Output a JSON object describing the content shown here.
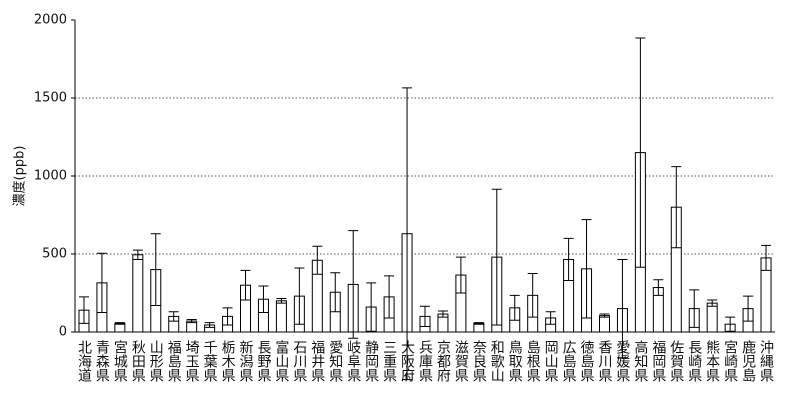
{
  "chart_data": {
    "type": "bar",
    "y_label": "濃度(ppb)",
    "categories": [
      "北海道",
      "青森県",
      "宮城県",
      "秋田県",
      "山形県",
      "福島県",
      "埼玉県",
      "千葉県",
      "栃木県",
      "新潟県",
      "長野県",
      "富山県",
      "石川県",
      "福井県",
      "愛知県",
      "岐阜県",
      "静岡県",
      "三重県",
      "大阪府",
      "兵庫県",
      "京都府",
      "滋賀県",
      "奈良県",
      "和歌山",
      "鳥取県",
      "島根県",
      "岡山県",
      "広島県",
      "徳島県",
      "香川県",
      "愛媛県",
      "高知県",
      "福岡県",
      "佐賀県",
      "長崎県",
      "熊本県",
      "宮崎県",
      "鹿児島",
      "沖縄県"
    ],
    "values": [
      140,
      315,
      55,
      495,
      400,
      100,
      70,
      45,
      100,
      300,
      210,
      200,
      230,
      460,
      255,
      305,
      160,
      225,
      630,
      100,
      115,
      365,
      55,
      480,
      155,
      235,
      90,
      465,
      405,
      105,
      150,
      1150,
      285,
      800,
      150,
      185,
      50,
      150,
      475
    ],
    "errors": [
      85,
      190,
      5,
      30,
      230,
      30,
      10,
      15,
      55,
      95,
      85,
      15,
      180,
      90,
      125,
      345,
      155,
      135,
      935,
      65,
      20,
      115,
      5,
      435,
      80,
      140,
      40,
      135,
      315,
      10,
      315,
      735,
      50,
      260,
      120,
      20,
      45,
      80,
      80
    ],
    "color": "#ffffff",
    "ylim": [
      0,
      2000
    ],
    "yticks": [
      0,
      500,
      1000,
      1500,
      2000
    ],
    "grid": true
  }
}
